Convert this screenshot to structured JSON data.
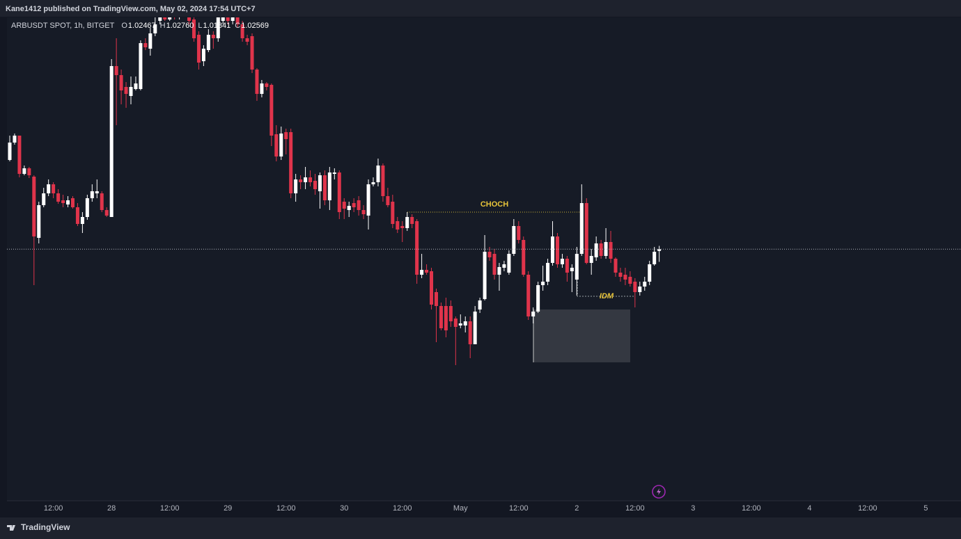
{
  "header": {
    "publisher": "Kane1412 published on TradingView.com, May 02, 2024 17:54 UTC+7"
  },
  "footer": {
    "brand": "TradingView"
  },
  "chart_data": {
    "type": "candlestick",
    "symbol": "ARBUSDT SPOT, 1h, BITGET",
    "readout": [
      {
        "label": "O",
        "value": "1.02467"
      },
      {
        "label": "H",
        "value": "1.02760"
      },
      {
        "label": "L",
        "value": "1.01841"
      },
      {
        "label": "C",
        "value": "1.02569"
      }
    ],
    "up_color": "#ffffff",
    "down_color": "#e0344b",
    "ylim": [
      0.881,
      1.159
    ],
    "xtick_labels": [
      "12:00",
      "28",
      "12:00",
      "29",
      "12:00",
      "30",
      "12:00",
      "May",
      "12:00",
      "2",
      "12:00",
      "3",
      "12:00",
      "4",
      "12:00",
      "5"
    ],
    "annotations": [
      "CHOCH",
      "IDM"
    ],
    "ohlc": [
      [
        1.077,
        1.091,
        1.0762,
        1.087
      ],
      [
        1.087,
        1.0922,
        1.0858,
        1.091
      ],
      [
        1.091,
        1.091,
        1.067,
        1.069
      ],
      [
        1.069,
        1.0738,
        1.0682,
        1.0722
      ],
      [
        1.0722,
        1.073,
        1.0666,
        1.0682
      ],
      [
        1.0674,
        1.0682,
        1.005,
        1.033
      ],
      [
        1.0322,
        1.053,
        1.029,
        1.051
      ],
      [
        1.051,
        1.061,
        1.0498,
        1.0578
      ],
      [
        1.0578,
        1.0658,
        1.0562,
        1.063
      ],
      [
        1.063,
        1.0642,
        1.055,
        1.0578
      ],
      [
        1.0578,
        1.0602,
        1.0518,
        1.053
      ],
      [
        1.0538,
        1.057,
        1.0498,
        1.0522
      ],
      [
        1.0514,
        1.0562,
        1.0498,
        1.0538
      ],
      [
        1.055,
        1.0562,
        1.049,
        1.0498
      ],
      [
        1.0498,
        1.0522,
        1.039,
        1.0402
      ],
      [
        1.0402,
        1.047,
        1.035,
        1.0442
      ],
      [
        1.0442,
        1.057,
        1.0426,
        1.055
      ],
      [
        1.055,
        1.063,
        1.053,
        1.059
      ],
      [
        1.0578,
        1.0658,
        1.055,
        1.059
      ],
      [
        1.0578,
        1.059,
        1.047,
        1.0482
      ],
      [
        1.0482,
        1.0498,
        1.0442,
        1.045
      ],
      [
        1.0442,
        1.135,
        1.0442,
        1.131
      ],
      [
        1.131,
        1.147,
        1.097,
        1.1258
      ],
      [
        1.1258,
        1.129,
        1.109,
        1.117
      ],
      [
        1.119,
        1.1218,
        1.107,
        1.115
      ],
      [
        1.1138,
        1.125,
        1.109,
        1.119
      ],
      [
        1.1178,
        1.125,
        1.117,
        1.121
      ],
      [
        1.1178,
        1.1458,
        1.117,
        1.1442
      ],
      [
        1.1442,
        1.147,
        1.1402,
        1.1418
      ],
      [
        1.141,
        1.153,
        1.137,
        1.1498
      ],
      [
        1.1498,
        1.161,
        1.1482,
        1.155
      ],
      [
        1.157,
        1.163,
        1.155,
        1.1602
      ],
      [
        1.1602,
        1.163,
        1.157,
        1.1578
      ],
      [
        1.1578,
        1.163,
        1.157,
        1.161
      ],
      [
        1.161,
        1.163,
        1.1578,
        1.159
      ],
      [
        1.159,
        1.163,
        1.1578,
        1.1618
      ],
      [
        1.1618,
        1.163,
        1.159,
        1.1602
      ],
      [
        1.1602,
        1.163,
        1.155,
        1.157
      ],
      [
        1.1578,
        1.159,
        1.145,
        1.147
      ],
      [
        1.149,
        1.151,
        1.129,
        1.133
      ],
      [
        1.1338,
        1.143,
        1.131,
        1.141
      ],
      [
        1.1402,
        1.1522,
        1.139,
        1.149
      ],
      [
        1.149,
        1.151,
        1.141,
        1.147
      ],
      [
        1.147,
        1.161,
        1.145,
        1.159
      ],
      [
        1.157,
        1.161,
        1.155,
        1.159
      ],
      [
        1.159,
        1.161,
        1.155,
        1.157
      ],
      [
        1.157,
        1.161,
        1.155,
        1.159
      ],
      [
        1.159,
        1.161,
        1.153,
        1.155
      ],
      [
        1.155,
        1.157,
        1.145,
        1.147
      ],
      [
        1.147,
        1.149,
        1.143,
        1.145
      ],
      [
        1.1482,
        1.1498,
        1.127,
        1.129
      ],
      [
        1.129,
        1.1298,
        1.111,
        1.115
      ],
      [
        1.115,
        1.123,
        1.113,
        1.121
      ],
      [
        1.121,
        1.1218,
        1.117,
        1.119
      ],
      [
        1.1202,
        1.121,
        1.085,
        1.091
      ],
      [
        1.0918,
        1.097,
        1.0762,
        1.079
      ],
      [
        1.079,
        1.0962,
        1.077,
        1.0922
      ],
      [
        1.093,
        1.095,
        1.0802,
        1.089
      ],
      [
        1.093,
        1.095,
        1.055,
        1.0578
      ],
      [
        1.0578,
        1.069,
        1.053,
        1.0658
      ],
      [
        1.0658,
        1.0682,
        1.0602,
        1.0642
      ],
      [
        1.0642,
        1.073,
        1.0602,
        1.067
      ],
      [
        1.067,
        1.071,
        1.0618,
        1.0642
      ],
      [
        1.065,
        1.069,
        1.057,
        1.0602
      ],
      [
        1.059,
        1.0698,
        1.049,
        1.0682
      ],
      [
        1.0682,
        1.071,
        1.051,
        1.0538
      ],
      [
        1.0538,
        1.073,
        1.0482,
        1.0698
      ],
      [
        1.069,
        1.0722,
        1.0658,
        1.0698
      ],
      [
        1.0698,
        1.071,
        1.043,
        1.047
      ],
      [
        1.053,
        1.055,
        1.043,
        1.049
      ],
      [
        1.0482,
        1.053,
        1.0442,
        1.0506
      ],
      [
        1.0522,
        1.055,
        1.047,
        1.0498
      ],
      [
        1.0538,
        1.0562,
        1.045,
        1.0482
      ],
      [
        1.0482,
        1.051,
        1.043,
        1.0458
      ],
      [
        1.045,
        1.0658,
        1.037,
        1.063
      ],
      [
        1.063,
        1.067,
        1.0618,
        1.0642
      ],
      [
        1.0642,
        1.0778,
        1.0618,
        1.0738
      ],
      [
        1.0738,
        1.075,
        1.053,
        1.0562
      ],
      [
        1.0562,
        1.061,
        1.0498,
        1.051
      ],
      [
        1.053,
        1.057,
        1.0378,
        1.0402
      ],
      [
        1.0418,
        1.0442,
        1.035,
        1.037
      ],
      [
        1.039,
        1.0418,
        1.0298,
        1.0378
      ],
      [
        1.0378,
        1.047,
        1.0362,
        1.0442
      ],
      [
        1.0442,
        1.0458,
        1.0378,
        1.0402
      ],
      [
        1.0418,
        1.043,
        1.0058,
        1.011
      ],
      [
        1.011,
        1.023,
        1.009,
        1.0138
      ],
      [
        1.0138,
        1.017,
        1.011,
        1.0122
      ],
      [
        1.013,
        1.015,
        0.991,
        0.9938
      ],
      [
        1.001,
        1.003,
        0.9722,
        0.993
      ],
      [
        0.993,
        0.995,
        0.979,
        0.9802
      ],
      [
        0.993,
        0.9978,
        0.975,
        0.979
      ],
      [
        0.993,
        0.9962,
        0.981,
        0.9842
      ],
      [
        0.9858,
        0.987,
        0.959,
        0.981
      ],
      [
        0.9818,
        0.9882,
        0.9802,
        0.983
      ],
      [
        0.9818,
        0.987,
        0.9778,
        0.9842
      ],
      [
        0.9842,
        0.987,
        0.963,
        0.971
      ],
      [
        0.971,
        0.993,
        0.971,
        0.9898
      ],
      [
        0.991,
        0.9978,
        0.989,
        0.9962
      ],
      [
        0.997,
        1.0338,
        0.9962,
        1.0242
      ],
      [
        1.0242,
        1.027,
        1.019,
        1.021
      ],
      [
        1.023,
        1.0258,
        1.0082,
        1.011
      ],
      [
        1.011,
        1.0178,
        1.0018,
        1.0154
      ],
      [
        1.015,
        1.019,
        1.013,
        1.017
      ],
      [
        1.0122,
        1.025,
        1.011,
        1.023
      ],
      [
        1.023,
        1.043,
        1.0218,
        1.039
      ],
      [
        1.039,
        1.0418,
        1.029,
        1.031
      ],
      [
        1.031,
        1.033,
        1.0098,
        1.011
      ],
      [
        1.011,
        1.013,
        0.985,
        0.987
      ],
      [
        0.987,
        0.9922,
        0.983,
        0.9898
      ],
      [
        0.9898,
        1.007,
        0.989,
        1.005
      ],
      [
        1.005,
        1.0162,
        1.0018,
        1.007
      ],
      [
        1.007,
        1.0202,
        1.005,
        1.0178
      ],
      [
        1.0178,
        1.0418,
        1.0162,
        1.033
      ],
      [
        1.033,
        1.035,
        1.015,
        1.017
      ],
      [
        1.017,
        1.023,
        1.015,
        1.0202
      ],
      [
        1.0202,
        1.0218,
        1.007,
        1.0122
      ],
      [
        1.013,
        1.017,
        1.001,
        1.015
      ],
      [
        1.0082,
        1.027,
        0.999,
        1.023
      ],
      [
        1.023,
        1.063,
        1.0218,
        1.0522
      ],
      [
        1.0522,
        1.055,
        1.017,
        1.0178
      ],
      [
        1.0178,
        1.0258,
        1.011,
        1.0218
      ],
      [
        1.021,
        1.033,
        1.019,
        1.029
      ],
      [
        1.029,
        1.031,
        1.0202,
        1.0218
      ],
      [
        1.0218,
        1.0378,
        1.0202,
        1.0298
      ],
      [
        1.0298,
        1.0362,
        1.0178,
        1.0202
      ],
      [
        1.0202,
        1.021,
        1.0098,
        1.0122
      ],
      [
        1.0122,
        1.015,
        1.007,
        1.0098
      ],
      [
        1.011,
        1.015,
        1.005,
        1.0082
      ],
      [
        1.0098,
        1.013,
        1.0042,
        1.0058
      ],
      [
        1.007,
        1.009,
        0.9922,
        1.001
      ],
      [
        1.001,
        1.007,
        0.999,
        1.0042
      ],
      [
        1.0042,
        1.0098,
        1.0018,
        1.007
      ],
      [
        1.007,
        1.019,
        1.005,
        1.017
      ],
      [
        1.017,
        1.027,
        1.0162,
        1.0242
      ],
      [
        1.02467,
        1.0276,
        1.01841,
        1.02569
      ]
    ]
  }
}
